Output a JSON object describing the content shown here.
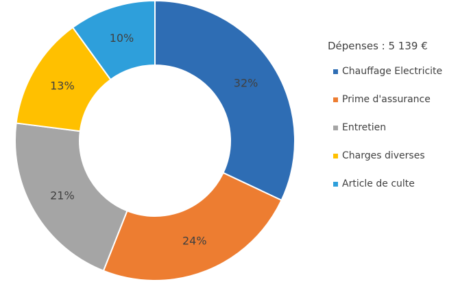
{
  "chart_data": {
    "type": "pie",
    "variant": "donut",
    "title": "Dépenses : 5 139 €",
    "categories": [
      "Chauffage Electricite",
      "Prime d'assurance",
      "Entretien",
      "Charges diverses",
      "Article de culte"
    ],
    "values": [
      32,
      24,
      21,
      13,
      10
    ],
    "labels": [
      "32%",
      "24%",
      "21%",
      "13%",
      "10%"
    ],
    "colors": [
      "#2E6DB4",
      "#ED7D31",
      "#A5A5A5",
      "#FFC000",
      "#2E9FDB"
    ],
    "legend": "right",
    "start_angle": "top, clockwise"
  }
}
